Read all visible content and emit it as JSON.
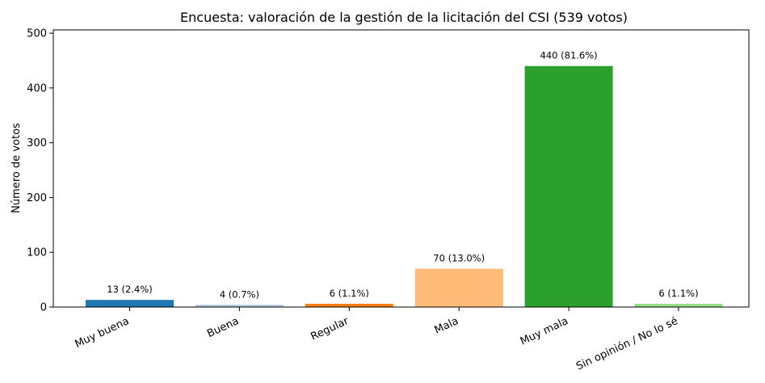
{
  "chart_data": {
    "type": "bar",
    "title": "Encuesta: valoración de la gestión de la licitación del CSI (539 votos)",
    "xlabel": "",
    "ylabel": "Número de votos",
    "ylim": [
      0,
      506
    ],
    "yticks": [
      "0",
      "100",
      "200",
      "300",
      "400",
      "500"
    ],
    "grid": false,
    "categories": [
      "Muy buena",
      "Buena",
      "Regular",
      "Mala",
      "Muy mala",
      "Sin opinión / No lo sé"
    ],
    "values": [
      13,
      4,
      6,
      70,
      440,
      6
    ],
    "data_labels": [
      "13 (2.4%)",
      "4 (0.7%)",
      "6 (1.1%)",
      "70 (13.0%)",
      "440 (81.6%)",
      "6 (1.1%)"
    ],
    "colors": [
      "#1f77b4",
      "#aec7e8",
      "#ff7f0e",
      "#ffbb78",
      "#2ca02c",
      "#98df8a"
    ]
  }
}
